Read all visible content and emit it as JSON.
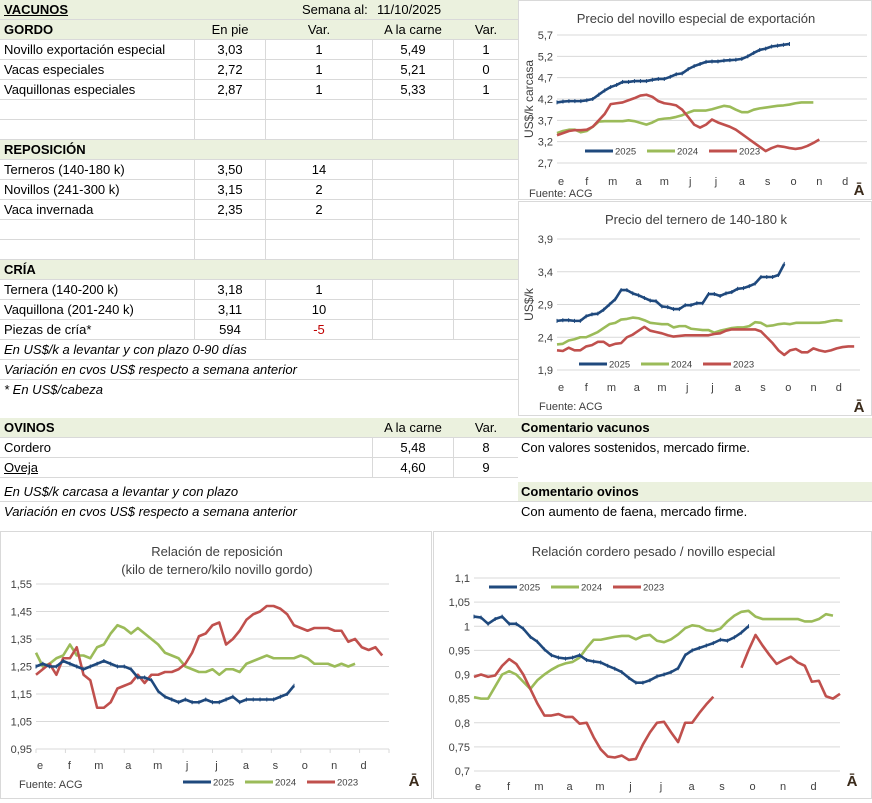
{
  "vacunos": {
    "title": "VACUNOS",
    "week_label": "Semana al:",
    "week_date": "11/10/2025",
    "gordo": {
      "title": "GORDO",
      "headers": [
        "En pie",
        "Var.",
        "A la carne",
        "Var."
      ],
      "rows": [
        {
          "name": "Novillo exportación especial",
          "en_pie": "3,03",
          "var1": "1",
          "carne": "5,49",
          "var2": "1"
        },
        {
          "name": "Vacas especiales",
          "en_pie": "2,72",
          "var1": "1",
          "carne": "5,21",
          "var2": "0"
        },
        {
          "name": "Vaquillonas especiales",
          "en_pie": "2,87",
          "var1": "1",
          "carne": "5,33",
          "var2": "1"
        }
      ]
    },
    "reposicion": {
      "title": "REPOSICIÓN",
      "rows": [
        {
          "name": "Terneros (140-180 k)",
          "en_pie": "3,50",
          "var1": "14"
        },
        {
          "name": "Novillos (241-300 k)",
          "en_pie": "3,15",
          "var1": "2"
        },
        {
          "name": "Vaca invernada",
          "en_pie": "2,35",
          "var1": "2"
        }
      ]
    },
    "cria": {
      "title": "CRÍA",
      "rows": [
        {
          "name": "Ternera (140-200 k)",
          "en_pie": "3,18",
          "var1": "1"
        },
        {
          "name": "Vaquillona (201-240 k)",
          "en_pie": "3,11",
          "var1": "10"
        },
        {
          "name": "Piezas de cría*",
          "en_pie": "594",
          "var1": "-5"
        }
      ]
    },
    "notes": [
      "En US$/k a levantar y con plazo 0-90 días",
      "Variación en cvos US$ respecto a semana anterior",
      "* En US$/cabeza"
    ]
  },
  "ovinos": {
    "title": "OVINOS",
    "headers": [
      "A la carne",
      "Var."
    ],
    "rows": [
      {
        "name": "Cordero",
        "carne": "5,48",
        "var": "8"
      },
      {
        "name": "Oveja",
        "carne": "4,60",
        "var": "9"
      }
    ],
    "notes": [
      "En US$/k carcasa a levantar y con plazo",
      "Variación en cvos US$ respecto a semana anterior"
    ]
  },
  "comments": {
    "vacunos_title": "Comentario vacunos",
    "vacunos_text": "Con valores sostenidos, mercado firme.",
    "ovinos_title": "Comentario ovinos",
    "ovinos_text": "Con aumento de faena, mercado firme."
  },
  "colors": {
    "s2025": "#1f497d",
    "s2024": "#9bbb59",
    "s2023": "#c0504d",
    "header_bg": "#ebf1de",
    "negative": "#c00000"
  },
  "chart_data": [
    {
      "id": "novillo",
      "type": "line",
      "title": "Precio del novillo especial de exportación",
      "title2": "",
      "ylabel": "US$/k carcasa",
      "source": "Fuente:  ACG",
      "ylim": [
        2.7,
        5.7
      ],
      "yticks": [
        "5,7",
        "5,2",
        "4,7",
        "4,2",
        "3,7",
        "3,2",
        "2,7"
      ],
      "ytick_values": [
        5.7,
        5.2,
        4.7,
        4.2,
        3.7,
        3.2,
        2.7
      ],
      "categories": [
        "e",
        "f",
        "m",
        "a",
        "m",
        "j",
        "j",
        "a",
        "s",
        "o",
        "n",
        "d"
      ],
      "legend": [
        "2025",
        "2024",
        "2023"
      ],
      "legend_position": "bottom-left-inside",
      "series": [
        {
          "name": "2025",
          "values": [
            4.12,
            4.14,
            4.15,
            4.15,
            4.15,
            4.17,
            4.2,
            4.3,
            4.4,
            4.48,
            4.53,
            4.6,
            4.6,
            4.62,
            4.62,
            4.62,
            4.65,
            4.67,
            4.67,
            4.72,
            4.78,
            4.8,
            4.9,
            4.97,
            5.02,
            5.07,
            5.08,
            5.08,
            5.1,
            5.11,
            5.12,
            5.14,
            5.2,
            5.28,
            5.35,
            5.38,
            5.43,
            5.45,
            5.47,
            5.49
          ]
        },
        {
          "name": "2024",
          "values": [
            3.4,
            3.45,
            3.48,
            3.48,
            3.42,
            3.45,
            3.55,
            3.67,
            3.68,
            3.68,
            3.68,
            3.68,
            3.7,
            3.68,
            3.64,
            3.6,
            3.65,
            3.72,
            3.74,
            3.75,
            3.78,
            3.82,
            3.88,
            3.93,
            3.93,
            3.93,
            3.96,
            4.0,
            4.04,
            4.02,
            3.95,
            3.89,
            3.89,
            3.95,
            3.98,
            4.0,
            4.02,
            4.04,
            4.05,
            4.07,
            4.1,
            4.12,
            4.12,
            4.12
          ]
        },
        {
          "name": "2023",
          "values": [
            3.35,
            3.4,
            3.45,
            3.47,
            3.47,
            3.48,
            3.55,
            3.7,
            3.85,
            4.08,
            4.1,
            4.12,
            4.17,
            4.22,
            4.28,
            4.3,
            4.25,
            4.15,
            4.1,
            4.08,
            4.05,
            3.95,
            3.78,
            3.6,
            3.53,
            3.6,
            3.72,
            3.65,
            3.6,
            3.55,
            3.48,
            3.38,
            3.28,
            3.18,
            3.08,
            2.98,
            3.05,
            3.1,
            3.08,
            3.05,
            3.03,
            3.05,
            3.1,
            3.17,
            3.25
          ]
        }
      ]
    },
    {
      "id": "ternero",
      "type": "line",
      "title": "Precio del ternero de 140-180  k",
      "title2": "",
      "ylabel": "US$/k",
      "source": "Fuente:  ACG",
      "ylim": [
        1.9,
        3.9
      ],
      "yticks": [
        "3,9",
        "3,4",
        "2,9",
        "2,4",
        "1,9"
      ],
      "ytick_values": [
        3.9,
        3.4,
        2.9,
        2.4,
        1.9
      ],
      "categories": [
        "e",
        "f",
        "m",
        "a",
        "m",
        "j",
        "j",
        "a",
        "s",
        "o",
        "n",
        "d"
      ],
      "legend": [
        "2025",
        "2024",
        "2023"
      ],
      "legend_position": "bottom-left-inside",
      "series": [
        {
          "name": "2025",
          "values": [
            2.65,
            2.66,
            2.66,
            2.65,
            2.65,
            2.72,
            2.75,
            2.76,
            2.82,
            2.9,
            2.98,
            3.12,
            3.12,
            3.07,
            3.04,
            3.0,
            2.96,
            2.95,
            2.87,
            2.86,
            2.83,
            2.83,
            2.89,
            2.89,
            2.92,
            2.92,
            3.06,
            3.06,
            3.03,
            3.07,
            3.09,
            3.14,
            3.15,
            3.18,
            3.22,
            3.32,
            3.32,
            3.32,
            3.35,
            3.52
          ]
        },
        {
          "name": "2024",
          "values": [
            2.29,
            2.3,
            2.35,
            2.37,
            2.4,
            2.4,
            2.44,
            2.48,
            2.54,
            2.6,
            2.62,
            2.67,
            2.68,
            2.7,
            2.69,
            2.66,
            2.62,
            2.61,
            2.6,
            2.6,
            2.55,
            2.57,
            2.57,
            2.53,
            2.52,
            2.51,
            2.51,
            2.47,
            2.5,
            2.52,
            2.54,
            2.55,
            2.55,
            2.57,
            2.63,
            2.62,
            2.57,
            2.58,
            2.6,
            2.61,
            2.6,
            2.62,
            2.62,
            2.62,
            2.62,
            2.62,
            2.63,
            2.65,
            2.66,
            2.65
          ]
        },
        {
          "name": "2023",
          "values": [
            2.2,
            2.19,
            2.24,
            2.2,
            2.2,
            2.26,
            2.28,
            2.33,
            2.33,
            2.27,
            2.3,
            2.31,
            2.4,
            2.44,
            2.5,
            2.56,
            2.5,
            2.48,
            2.46,
            2.43,
            2.41,
            2.42,
            2.43,
            2.43,
            2.43,
            2.43,
            2.43,
            2.45,
            2.46,
            2.5,
            2.52,
            2.52,
            2.52,
            2.52,
            2.52,
            2.49,
            2.4,
            2.31,
            2.2,
            2.13,
            2.2,
            2.22,
            2.17,
            2.17,
            2.23,
            2.2,
            2.18,
            2.2,
            2.23,
            2.25,
            2.26,
            2.26
          ]
        }
      ]
    },
    {
      "id": "reposicion",
      "type": "line",
      "title": "Relación de reposición",
      "title2": "(kilo de ternero/kilo novillo gordo)",
      "ylabel": "",
      "source": "Fuente:  ACG",
      "ylim": [
        0.95,
        1.55
      ],
      "yticks": [
        "1,55",
        "1,45",
        "1,35",
        "1,25",
        "1,15",
        "1,05",
        "0,95"
      ],
      "ytick_values": [
        1.55,
        1.45,
        1.35,
        1.25,
        1.15,
        1.05,
        0.95
      ],
      "categories": [
        "e",
        "f",
        "m",
        "a",
        "m",
        "j",
        "j",
        "a",
        "s",
        "o",
        "n",
        "d"
      ],
      "legend": [
        "2025",
        "2024",
        "2023"
      ],
      "legend_position": "bottom",
      "series": [
        {
          "name": "2025",
          "values": [
            1.25,
            1.26,
            1.25,
            1.25,
            1.27,
            1.26,
            1.25,
            1.24,
            1.25,
            1.26,
            1.27,
            1.26,
            1.25,
            1.25,
            1.24,
            1.21,
            1.21,
            1.2,
            1.16,
            1.14,
            1.13,
            1.12,
            1.13,
            1.12,
            1.12,
            1.13,
            1.12,
            1.12,
            1.13,
            1.14,
            1.12,
            1.13,
            1.13,
            1.13,
            1.13,
            1.13,
            1.14,
            1.15,
            1.18
          ]
        },
        {
          "name": "2024",
          "values": [
            1.3,
            1.25,
            1.26,
            1.28,
            1.29,
            1.33,
            1.29,
            1.29,
            1.28,
            1.32,
            1.33,
            1.37,
            1.4,
            1.39,
            1.37,
            1.39,
            1.37,
            1.35,
            1.33,
            1.3,
            1.29,
            1.28,
            1.25,
            1.24,
            1.23,
            1.23,
            1.24,
            1.22,
            1.24,
            1.24,
            1.23,
            1.26,
            1.27,
            1.28,
            1.29,
            1.28,
            1.28,
            1.28,
            1.28,
            1.29,
            1.28,
            1.26,
            1.26,
            1.26,
            1.25,
            1.26,
            1.25,
            1.26
          ]
        },
        {
          "name": "2023",
          "values": [
            1.22,
            1.24,
            1.26,
            1.22,
            1.28,
            1.28,
            1.32,
            1.22,
            1.2,
            1.1,
            1.1,
            1.12,
            1.17,
            1.18,
            1.19,
            1.22,
            1.19,
            1.22,
            1.22,
            1.23,
            1.23,
            1.24,
            1.26,
            1.3,
            1.36,
            1.37,
            1.4,
            1.41,
            1.33,
            1.35,
            1.38,
            1.42,
            1.44,
            1.45,
            1.47,
            1.47,
            1.46,
            1.44,
            1.4,
            1.39,
            1.38,
            1.39,
            1.39,
            1.39,
            1.38,
            1.38,
            1.34,
            1.35,
            1.32,
            1.31,
            1.32,
            1.29
          ]
        }
      ]
    },
    {
      "id": "cordero",
      "type": "line",
      "title": "Relación cordero pesado / novillo especial",
      "title2": "",
      "ylabel": "",
      "source": "",
      "ylim": [
        0.7,
        1.1
      ],
      "yticks": [
        "1,1",
        "1,05",
        "1",
        "0,95",
        "0,9",
        "0,85",
        "0,8",
        "0,75",
        "0,7"
      ],
      "ytick_values": [
        1.1,
        1.05,
        1.0,
        0.95,
        0.9,
        0.85,
        0.8,
        0.75,
        0.7
      ],
      "categories": [
        "e",
        "f",
        "m",
        "a",
        "m",
        "j",
        "j",
        "a",
        "s",
        "o",
        "n",
        "d"
      ],
      "legend": [
        "2025",
        "2024",
        "2023"
      ],
      "legend_position": "top-left-inside",
      "series": [
        {
          "name": "2025",
          "values": [
            1.02,
            1.018,
            1.005,
            1.015,
            1.02,
            1.005,
            1.005,
            0.995,
            0.978,
            0.968,
            0.952,
            0.94,
            0.935,
            0.933,
            0.935,
            0.94,
            0.93,
            0.927,
            0.925,
            0.918,
            0.912,
            0.905,
            0.893,
            0.883,
            0.883,
            0.888,
            0.896,
            0.9,
            0.905,
            0.913,
            0.94,
            0.95,
            0.955,
            0.96,
            0.965,
            0.972,
            0.97,
            0.977,
            0.987,
            1.0
          ]
        },
        {
          "name": "2024",
          "values": [
            0.853,
            0.85,
            0.85,
            0.875,
            0.9,
            0.907,
            0.9,
            0.885,
            0.87,
            0.888,
            0.9,
            0.91,
            0.918,
            0.923,
            0.926,
            0.935,
            0.955,
            0.972,
            0.972,
            0.975,
            0.978,
            0.98,
            0.98,
            0.973,
            0.98,
            0.982,
            0.97,
            0.967,
            0.973,
            0.983,
            0.996,
            1.002,
            1.0,
            0.992,
            0.99,
            0.995,
            1.01,
            1.022,
            1.03,
            1.032,
            1.02,
            1.015,
            1.015,
            1.015,
            1.015,
            1.015,
            1.015,
            1.01,
            1.01,
            1.015,
            1.025,
            1.022
          ]
        },
        {
          "name": "2023",
          "values": [
            0.895,
            0.9,
            0.895,
            0.898,
            0.918,
            0.932,
            0.922,
            0.9,
            0.87,
            0.84,
            0.815,
            0.815,
            0.818,
            0.812,
            0.812,
            0.798,
            0.8,
            0.77,
            0.745,
            0.73,
            0.728,
            0.732,
            0.723,
            0.725,
            0.755,
            0.78,
            0.8,
            0.802,
            0.78,
            0.76,
            0.8,
            0.8,
            0.82,
            0.838,
            0.854,
            null,
            null,
            null,
            0.914,
            0.95,
            0.982,
            0.96,
            0.94,
            0.922,
            0.93,
            0.937,
            0.925,
            0.918,
            0.885,
            0.887,
            0.855,
            0.85,
            0.86
          ]
        }
      ]
    }
  ]
}
